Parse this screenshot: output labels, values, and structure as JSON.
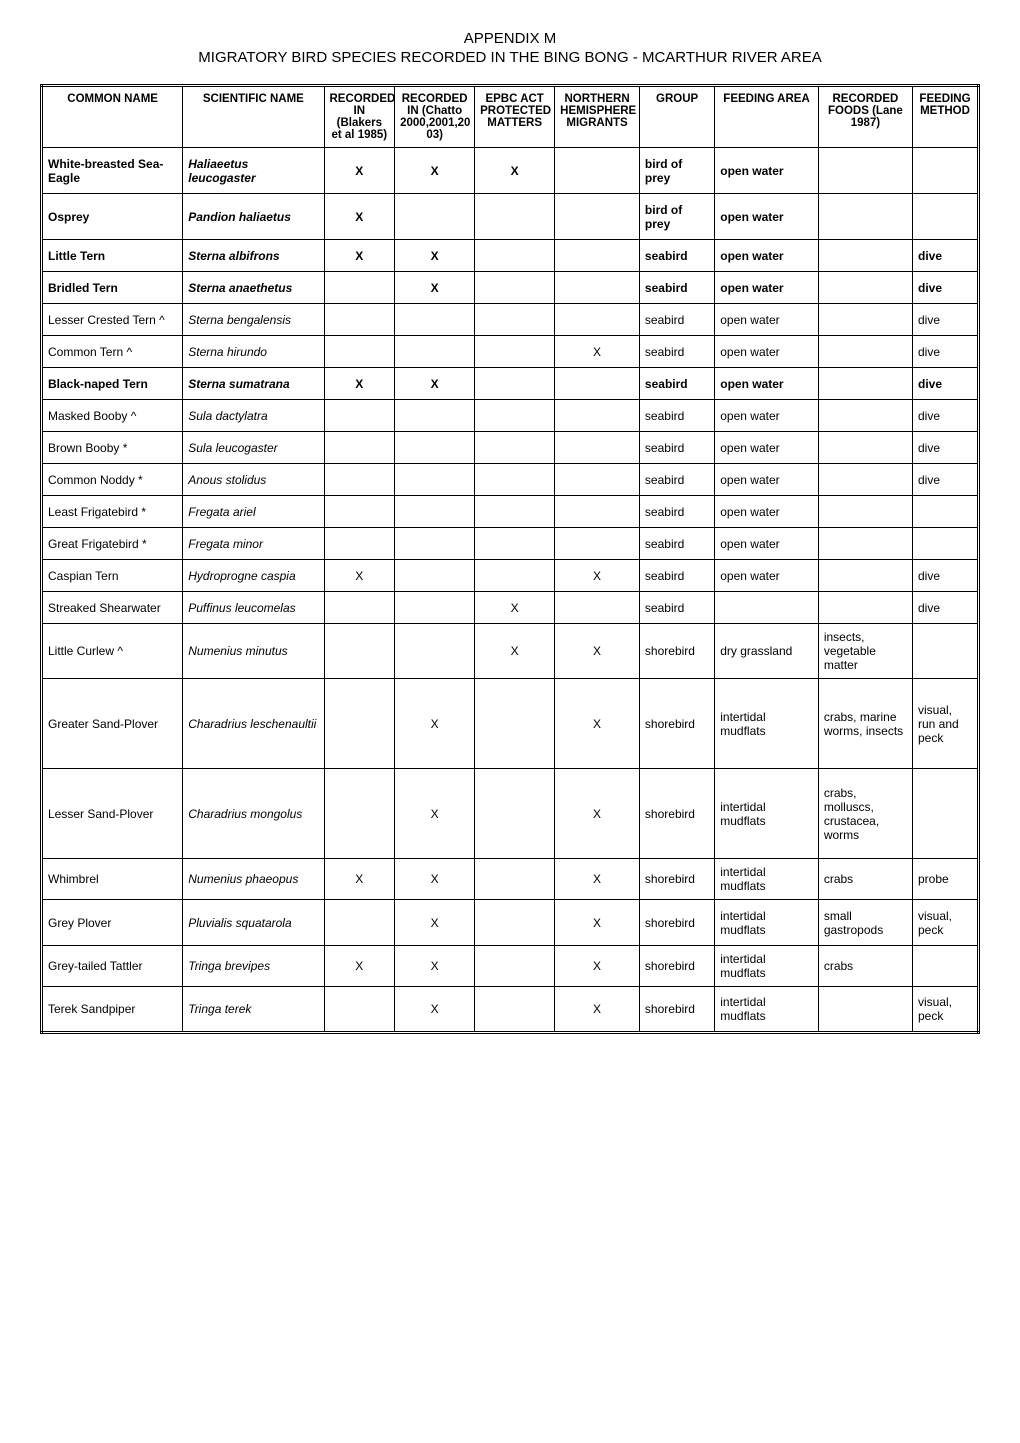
{
  "title": {
    "line1": "APPENDIX M",
    "line2": "MIGRATORY BIRD SPECIES RECORDED IN THE BING BONG - MCARTHUR RIVER AREA"
  },
  "columns": [
    "COMMON NAME",
    "SCIENTIFIC NAME",
    "RECORDED IN (Blakers et al 1985)",
    "RECORDED IN (Chatto 2000,2001,2003)",
    "EPBC ACT PROTECTED MATTERS",
    "NORTHERN HEMISPHERE MIGRANTS",
    "GROUP",
    "FEEDING AREA",
    "RECORDED FOODS (Lane 1987)",
    "FEEDING METHOD"
  ],
  "header_lines": {
    "common": [
      "COMMON NAME"
    ],
    "sci": [
      "SCIENTIFIC NAME"
    ],
    "rec1": [
      "RECORDED",
      "IN (Blakers",
      "et al 1985)"
    ],
    "rec2": [
      "RECORDED",
      "IN (Chatto",
      "2000,2001,20",
      "03)"
    ],
    "epbc": [
      "EPBC ACT",
      "PROTECTED",
      "MATTERS"
    ],
    "north": [
      "NORTHERN",
      "HEMISPHERE",
      "MIGRANTS"
    ],
    "group": [
      "GROUP"
    ],
    "feedarea": [
      "FEEDING AREA"
    ],
    "foods": [
      "RECORDED",
      "FOODS (Lane",
      "1987)"
    ],
    "method": [
      "FEEDING",
      "METHOD"
    ]
  },
  "rows": [
    {
      "bold": true,
      "common": "White-breasted Sea-Eagle",
      "sci": "Haliaeetus leucogaster",
      "r1": "X",
      "r2": "X",
      "epbc": "X",
      "north": "",
      "group": "bird of prey",
      "area": "open water",
      "foods": "",
      "method": "",
      "h": "med"
    },
    {
      "bold": true,
      "common": "Osprey",
      "sci": "Pandion haliaetus",
      "r1": "X",
      "r2": "",
      "epbc": "",
      "north": "",
      "group": "bird of prey",
      "area": "open water",
      "foods": "",
      "method": "",
      "h": "med"
    },
    {
      "bold": true,
      "common": "Little Tern",
      "sci": "Sterna albifrons",
      "r1": "X",
      "r2": "X",
      "epbc": "",
      "north": "",
      "group": "seabird",
      "area": "open water",
      "foods": "",
      "method": "dive"
    },
    {
      "bold": true,
      "common": "Bridled Tern",
      "sci": "Sterna anaethetus",
      "r1": "",
      "r2": "X",
      "epbc": "",
      "north": "",
      "group": "seabird",
      "area": "open water",
      "foods": "",
      "method": "dive"
    },
    {
      "bold": false,
      "common": "Lesser Crested Tern ^",
      "sci": "Sterna bengalensis",
      "r1": "",
      "r2": "",
      "epbc": "",
      "north": "",
      "group": "seabird",
      "area": "open water",
      "foods": "",
      "method": "dive"
    },
    {
      "bold": false,
      "common": "Common Tern ^",
      "sci": "Sterna hirundo",
      "r1": "",
      "r2": "",
      "epbc": "",
      "north": "X",
      "group": "seabird",
      "area": "open water",
      "foods": "",
      "method": "dive"
    },
    {
      "bold": true,
      "common": "Black-naped Tern",
      "sci": "Sterna sumatrana",
      "r1": "X",
      "r2": "X",
      "epbc": "",
      "north": "",
      "group": "seabird",
      "area": "open water",
      "foods": "",
      "method": "dive"
    },
    {
      "bold": false,
      "common": "Masked Booby ^",
      "sci": "Sula dactylatra",
      "r1": "",
      "r2": "",
      "epbc": "",
      "north": "",
      "group": "seabird",
      "area": "open water",
      "foods": "",
      "method": "dive"
    },
    {
      "bold": false,
      "common": "Brown Booby *",
      "sci": "Sula leucogaster",
      "r1": "",
      "r2": "",
      "epbc": "",
      "north": "",
      "group": "seabird",
      "area": "open water",
      "foods": "",
      "method": "dive"
    },
    {
      "bold": false,
      "common": "Common Noddy *",
      "sci": "Anous stolidus",
      "r1": "",
      "r2": "",
      "epbc": "",
      "north": "",
      "group": "seabird",
      "area": "open water",
      "foods": "",
      "method": "dive"
    },
    {
      "bold": false,
      "common": "Least Frigatebird *",
      "sci": "Fregata ariel",
      "r1": "",
      "r2": "",
      "epbc": "",
      "north": "",
      "group": "seabird",
      "area": "open water",
      "foods": "",
      "method": ""
    },
    {
      "bold": false,
      "common": "Great Frigatebird *",
      "sci": "Fregata minor",
      "r1": "",
      "r2": "",
      "epbc": "",
      "north": "",
      "group": "seabird",
      "area": "open water",
      "foods": "",
      "method": ""
    },
    {
      "bold": false,
      "common": "Caspian Tern",
      "sci": "Hydroprogne caspia",
      "r1": "X",
      "r2": "",
      "epbc": "",
      "north": "X",
      "group": "seabird",
      "area": "open water",
      "foods": "",
      "method": "dive"
    },
    {
      "bold": false,
      "common": "Streaked Shearwater",
      "sci": "Puffinus leucomelas",
      "r1": "",
      "r2": "",
      "epbc": "X",
      "north": "",
      "group": "seabird",
      "area": "",
      "foods": "",
      "method": "dive"
    },
    {
      "bold": false,
      "common": "Little Curlew ^",
      "sci": "Numenius minutus",
      "r1": "",
      "r2": "",
      "epbc": "X",
      "north": "X",
      "group": "shorebird",
      "area": "dry grassland",
      "foods": "insects, vegetable matter",
      "method": "",
      "h": "med"
    },
    {
      "bold": false,
      "common": "Greater Sand-Plover",
      "sci": "Charadrius leschenaultii",
      "r1": "",
      "r2": "X",
      "epbc": "",
      "north": "X",
      "group": "shorebird",
      "area": "intertidal mudflats",
      "foods": "crabs, marine worms, insects",
      "method": "visual, run and peck",
      "h": "tall"
    },
    {
      "bold": false,
      "common": "Lesser Sand-Plover",
      "sci": "Charadrius mongolus",
      "r1": "",
      "r2": "X",
      "epbc": "",
      "north": "X",
      "group": "shorebird",
      "area": "intertidal mudflats",
      "foods": "crabs, molluscs, crustacea, worms",
      "method": "",
      "h": "tall"
    },
    {
      "bold": false,
      "common": "Whimbrel",
      "sci": "Numenius phaeopus",
      "r1": "X",
      "r2": "X",
      "epbc": "",
      "north": "X",
      "group": "shorebird",
      "area": "intertidal mudflats",
      "foods": "crabs",
      "method": "probe"
    },
    {
      "bold": false,
      "common": "Grey Plover",
      "sci": "Pluvialis squatarola",
      "r1": "",
      "r2": "X",
      "epbc": "",
      "north": "X",
      "group": "shorebird",
      "area": "intertidal mudflats",
      "foods": "small gastropods",
      "method": "visual, peck",
      "h": "med"
    },
    {
      "bold": false,
      "common": "Grey-tailed Tattler",
      "sci": "Tringa brevipes",
      "r1": "X",
      "r2": "X",
      "epbc": "",
      "north": "X",
      "group": "shorebird",
      "area": "intertidal mudflats",
      "foods": "crabs",
      "method": ""
    },
    {
      "bold": false,
      "common": "Terek Sandpiper",
      "sci": "Tringa terek",
      "r1": "",
      "r2": "X",
      "epbc": "",
      "north": "X",
      "group": "shorebird",
      "area": "intertidal mudflats",
      "foods": "",
      "method": "visual, peck",
      "h": "med"
    }
  ]
}
